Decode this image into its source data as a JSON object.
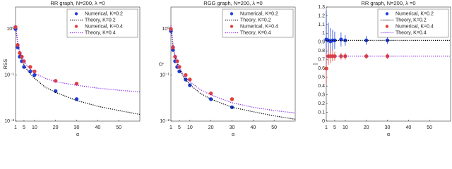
{
  "chart_data": [
    {
      "type": "line",
      "title": "RR graph, N=200, λ =0",
      "ylabel": "RSS",
      "xlabel": "α",
      "ylog": true,
      "xlim": [
        1,
        60
      ],
      "xticks": [
        1,
        5,
        10,
        20,
        30,
        40,
        50
      ],
      "ylim": [
        0.01,
        3
      ],
      "yticks": [
        {
          "value": 0.01,
          "label": "10⁻²"
        },
        {
          "value": 0.1,
          "label": "10⁻¹"
        },
        {
          "value": 1,
          "label": "10⁰"
        }
      ],
      "series": [
        {
          "name": "Numerical, K=0.2",
          "color": "#1f3fd6",
          "style": "marker",
          "x": [
            1,
            2,
            3,
            4,
            5,
            8,
            10,
            20,
            30
          ],
          "values": [
            1.0,
            0.4,
            0.25,
            0.2,
            0.15,
            0.12,
            0.1,
            0.045,
            0.03
          ]
        },
        {
          "name": "Theory, K=0.2",
          "color": "#000000",
          "style": "dotted",
          "x": [
            1,
            2,
            3,
            5,
            7,
            10,
            15,
            20,
            30,
            40,
            50,
            60
          ],
          "values": [
            1.2,
            0.5,
            0.3,
            0.17,
            0.12,
            0.085,
            0.055,
            0.042,
            0.028,
            0.021,
            0.017,
            0.014
          ]
        },
        {
          "name": "Numerical, K=0.4",
          "color": "#e0403a",
          "style": "marker",
          "x": [
            1,
            2,
            3,
            4,
            5,
            8,
            10,
            20,
            30
          ],
          "values": [
            1.1,
            0.45,
            0.3,
            0.25,
            0.2,
            0.15,
            0.12,
            0.075,
            0.065
          ]
        },
        {
          "name": "Theory, K=0.4",
          "color": "#8a2be2",
          "style": "dotted",
          "x": [
            1,
            2,
            3,
            5,
            7,
            10,
            15,
            20,
            30,
            40,
            50,
            60
          ],
          "values": [
            1.2,
            0.5,
            0.32,
            0.2,
            0.15,
            0.11,
            0.085,
            0.072,
            0.06,
            0.052,
            0.047,
            0.043
          ]
        }
      ]
    },
    {
      "type": "line",
      "title": "RGG graph, N=200, λ =0",
      "ylabel": "Q",
      "xlabel": "α",
      "ylog": true,
      "xlim": [
        1,
        60
      ],
      "xticks": [
        1,
        5,
        10,
        20,
        30,
        40,
        50
      ],
      "ylim": [
        0.01,
        3
      ],
      "yticks": [
        {
          "value": 0.01,
          "label": "10⁻²"
        },
        {
          "value": 0.1,
          "label": "10⁻¹"
        },
        {
          "value": 1,
          "label": "10⁰"
        }
      ],
      "series": [
        {
          "name": "Numerical, K=0.2",
          "color": "#1f3fd6",
          "style": "marker",
          "x": [
            1,
            2,
            3,
            4,
            5,
            8,
            10,
            20,
            30
          ],
          "values": [
            0.9,
            0.35,
            0.2,
            0.15,
            0.12,
            0.08,
            0.06,
            0.03,
            0.02
          ]
        },
        {
          "name": "Theory, K=0.2",
          "color": "#000000",
          "style": "dotted",
          "x": [
            1,
            2,
            3,
            5,
            7,
            10,
            15,
            20,
            30,
            40,
            50,
            60
          ],
          "values": [
            1.1,
            0.42,
            0.24,
            0.13,
            0.09,
            0.062,
            0.04,
            0.03,
            0.02,
            0.016,
            0.013,
            0.011
          ]
        },
        {
          "name": "Numerical, K=0.4",
          "color": "#e0403a",
          "style": "marker",
          "x": [
            1,
            2,
            3,
            4,
            5,
            8,
            10,
            20,
            30
          ],
          "values": [
            1.0,
            0.4,
            0.25,
            0.2,
            0.15,
            0.1,
            0.08,
            0.04,
            0.03
          ]
        },
        {
          "name": "Theory, K=0.4",
          "color": "#8a2be2",
          "style": "dotted",
          "x": [
            1,
            2,
            3,
            5,
            7,
            10,
            15,
            20,
            30,
            40,
            50,
            60
          ],
          "values": [
            1.2,
            0.46,
            0.27,
            0.15,
            0.1,
            0.072,
            0.048,
            0.037,
            0.025,
            0.02,
            0.017,
            0.015
          ]
        }
      ]
    },
    {
      "type": "line",
      "title": "RR graph, N=200, λ =0",
      "ylabel": "l̄",
      "xlabel": "α",
      "ylog": false,
      "xlim": [
        1,
        60
      ],
      "xticks": [
        1,
        5,
        10,
        20,
        30,
        40,
        50
      ],
      "ylim": [
        0,
        1.3
      ],
      "yticks": [
        0,
        0.1,
        0.2,
        0.3,
        0.4,
        0.5,
        0.6,
        0.7,
        0.8,
        0.9,
        1,
        1.1,
        1.2,
        1.3
      ],
      "series": [
        {
          "name": "Numerical, K=0.2",
          "color": "#1f3fd6",
          "style": "marker",
          "x": [
            1,
            2,
            3,
            4,
            5,
            8,
            10,
            20,
            30
          ],
          "values": [
            0.93,
            0.92,
            0.91,
            0.92,
            0.92,
            0.93,
            0.92,
            0.92,
            0.92
          ],
          "errors": [
            0.33,
            0.2,
            0.15,
            0.12,
            0.1,
            0.08,
            0.06,
            0.05,
            0.04
          ]
        },
        {
          "name": "Theory, K=0.2",
          "color": "#000000",
          "style": "dotted",
          "x": [
            1,
            60
          ],
          "values": [
            0.92,
            0.92
          ]
        },
        {
          "name": "Numerical, K=0.4",
          "color": "#e0403a",
          "style": "marker",
          "x": [
            1,
            2,
            3,
            4,
            5,
            8,
            10,
            20,
            30
          ],
          "values": [
            0.6,
            0.74,
            0.74,
            0.74,
            0.74,
            0.74,
            0.74,
            0.74,
            0.74
          ],
          "errors": [
            0.17,
            0.1,
            0.08,
            0.06,
            0.05,
            0.04,
            0.04,
            0.03,
            0.03
          ]
        },
        {
          "name": "Theory, K=0.4",
          "color": "#8a2be2",
          "style": "dotted",
          "x": [
            1,
            60
          ],
          "values": [
            0.74,
            0.74
          ]
        }
      ]
    }
  ]
}
